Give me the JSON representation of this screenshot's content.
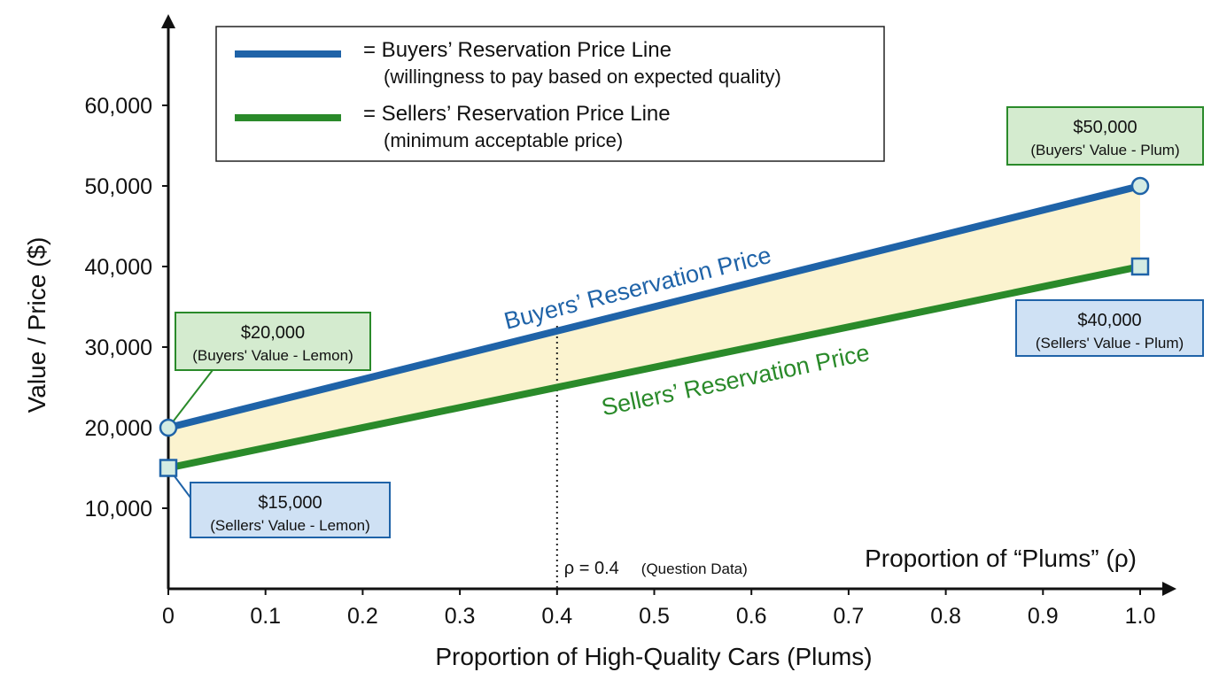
{
  "chart_data": {
    "type": "line",
    "xlabel": "Proportion of High-Quality Cars (Plums)",
    "ylabel": "Value / Price ($)",
    "xlim": [
      0,
      1.0
    ],
    "ylim": [
      0,
      64000
    ],
    "x_ticks": [
      "0",
      "0.1",
      "0.2",
      "0.3",
      "0.4",
      "0.5",
      "0.6",
      "0.7",
      "0.8",
      "0.9",
      "1.0"
    ],
    "y_ticks": [
      "10,000",
      "20,000",
      "30,000",
      "40,000",
      "50,000",
      "60,000"
    ],
    "grid": false,
    "series": [
      {
        "name": "Buyers’ Reservation Price",
        "color": "#1f63a8",
        "x": [
          0,
          1.0
        ],
        "y": [
          20000,
          50000
        ]
      },
      {
        "name": "Sellers’ Reservation Price",
        "color": "#2a8a2a",
        "x": [
          0,
          1.0
        ],
        "y": [
          15000,
          40000
        ]
      }
    ],
    "shaded_band_color": "#fbf3cf",
    "legend": {
      "placement": "top-left",
      "entries": [
        {
          "label": "= Buyers’ Reservation Price Line",
          "sublabel": "(willingness to pay based on expected quality)",
          "color": "#1f63a8"
        },
        {
          "label": "= Sellers’ Reservation Price Line",
          "sublabel": "(minimum acceptable price)",
          "color": "#2a8a2a"
        }
      ]
    },
    "annotations": {
      "buyers_lemon": {
        "value": "$20,000",
        "sub": "(Buyers' Value - Lemon)",
        "x": 0,
        "y": 20000
      },
      "sellers_lemon": {
        "value": "$15,000",
        "sub": "(Sellers' Value - Lemon)",
        "x": 0,
        "y": 15000
      },
      "buyers_plum": {
        "value": "$50,000",
        "sub": "(Buyers' Value - Plum)",
        "x": 1.0,
        "y": 50000
      },
      "sellers_plum": {
        "value": "$40,000",
        "sub": "(Sellers' Value - Plum)",
        "x": 1.0,
        "y": 40000
      },
      "rho_marker": {
        "x": 0.4,
        "label": "ρ = 0.4",
        "sub": "(Question Data)"
      },
      "axis_note": "Proportion of “Plums” (ρ)"
    },
    "colors": {
      "callout_green_bg": "#d4ebcf",
      "callout_green_border": "#2a8a2a",
      "callout_blue_bg": "#cfe1f4",
      "callout_blue_border": "#1f63a8",
      "marker_fill": "#d4ece3"
    }
  }
}
